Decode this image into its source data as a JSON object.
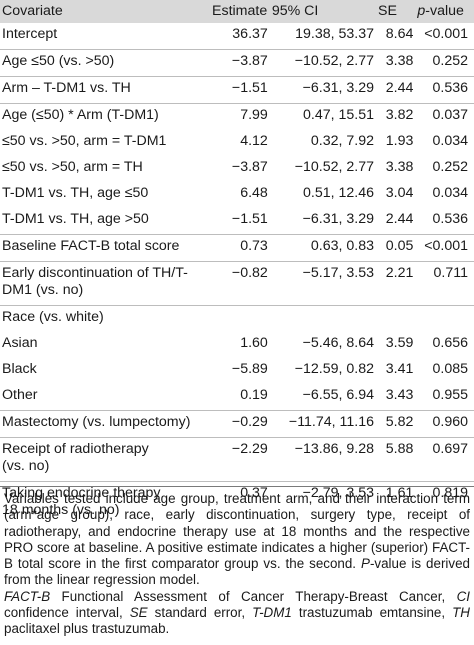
{
  "header": {
    "covariate": "Covariate",
    "estimate": "Estimate",
    "ci": "95% CI",
    "se": "SE",
    "p_italic": "p",
    "p_rest": "-value"
  },
  "rows": [
    {
      "covariate": "Intercept",
      "estimate": "36.37",
      "ci": "19.38, 53.37",
      "se": "8.64",
      "p": "<0.001"
    },
    {
      "covariate": "Age ≤50 (vs. >50)",
      "estimate": "−3.87",
      "ci": "−10.52, 2.77",
      "se": "3.38",
      "p": "0.252"
    },
    {
      "covariate": "Arm – T-DM1 vs. TH",
      "estimate": "−1.51",
      "ci": "−6.31, 3.29",
      "se": "2.44",
      "p": "0.536"
    },
    {
      "covariate": "Age (≤50) * Arm (T-DM1)",
      "estimate": "7.99",
      "ci": "0.47, 15.51",
      "se": "3.82",
      "p": "0.037"
    },
    {
      "covariate": "≤50 vs. >50, arm = T-DM1",
      "estimate": "4.12",
      "ci": "0.32, 7.92",
      "se": "1.93",
      "p": "0.034"
    },
    {
      "covariate": "≤50 vs. >50, arm = TH",
      "estimate": "−3.87",
      "ci": "−10.52, 2.77",
      "se": "3.38",
      "p": "0.252"
    },
    {
      "covariate": "T-DM1 vs. TH, age ≤50",
      "estimate": "6.48",
      "ci": "0.51, 12.46",
      "se": "3.04",
      "p": "0.034"
    },
    {
      "covariate": "T-DM1 vs. TH, age >50",
      "estimate": "−1.51",
      "ci": "−6.31, 3.29",
      "se": "2.44",
      "p": "0.536"
    },
    {
      "covariate": "Baseline FACT-B total score",
      "estimate": "0.73",
      "ci": "0.63, 0.83",
      "se": "0.05",
      "p": "<0.001"
    },
    {
      "covariate_l1": "Early discontinuation of TH/T-",
      "covariate_l2": "DM1 (vs. no)",
      "estimate": "−0.82",
      "ci": "−5.17, 3.53",
      "se": "2.21",
      "p": "0.711"
    },
    {
      "covariate": "Race (vs. white)",
      "estimate": "",
      "ci": "",
      "se": "",
      "p": ""
    },
    {
      "covariate": "Asian",
      "estimate": "1.60",
      "ci": "−5.46, 8.64",
      "se": "3.59",
      "p": "0.656"
    },
    {
      "covariate": "Black",
      "estimate": "−5.89",
      "ci": "−12.59, 0.82",
      "se": "3.41",
      "p": "0.085"
    },
    {
      "covariate": "Other",
      "estimate": "0.19",
      "ci": "−6.55, 6.94",
      "se": "3.43",
      "p": "0.955"
    },
    {
      "covariate": "Mastectomy (vs. lumpectomy)",
      "estimate": "−0.29",
      "ci": "−11.74, 11.16",
      "se": "5.82",
      "p": "0.960"
    },
    {
      "covariate_l1": "Receipt of radiotherapy",
      "covariate_l2": "(vs. no)",
      "estimate": "−2.29",
      "ci": "−13.86, 9.28",
      "se": "5.88",
      "p": "0.697"
    },
    {
      "covariate_l1": "Taking endocrine therapy",
      "covariate_l2": "18 months (vs. no)",
      "estimate": "0.37",
      "ci": "−2.79, 3.53",
      "se": "1.61",
      "p": "0.819"
    }
  ],
  "footnote": {
    "p1_a": "Variables tested include age group, treatment arm, and their interaction term (arm*age group), race, early discontinuation, surgery type, receipt of radiotherapy, and endocrine therapy use at 18 months and the respective PRO score at baseline. A positive estimate indicates a higher (superior) FACT-B total score in the first comparator group vs. the second. ",
    "p1_pv": "P",
    "p1_b": "-value is derived from the linear regression model.",
    "abbr": [
      {
        "term": "FACT-B",
        "def": " Functional Assessment of Cancer Therapy-Breast Cancer, "
      },
      {
        "term": "CI",
        "def": " confidence interval, "
      },
      {
        "term": "SE",
        "def": " standard error, "
      },
      {
        "term": "T-DM1",
        "def": " trastuzumab emtansine, "
      },
      {
        "term": "TH",
        "def": " paclitaxel plus trastuzumab."
      }
    ]
  }
}
